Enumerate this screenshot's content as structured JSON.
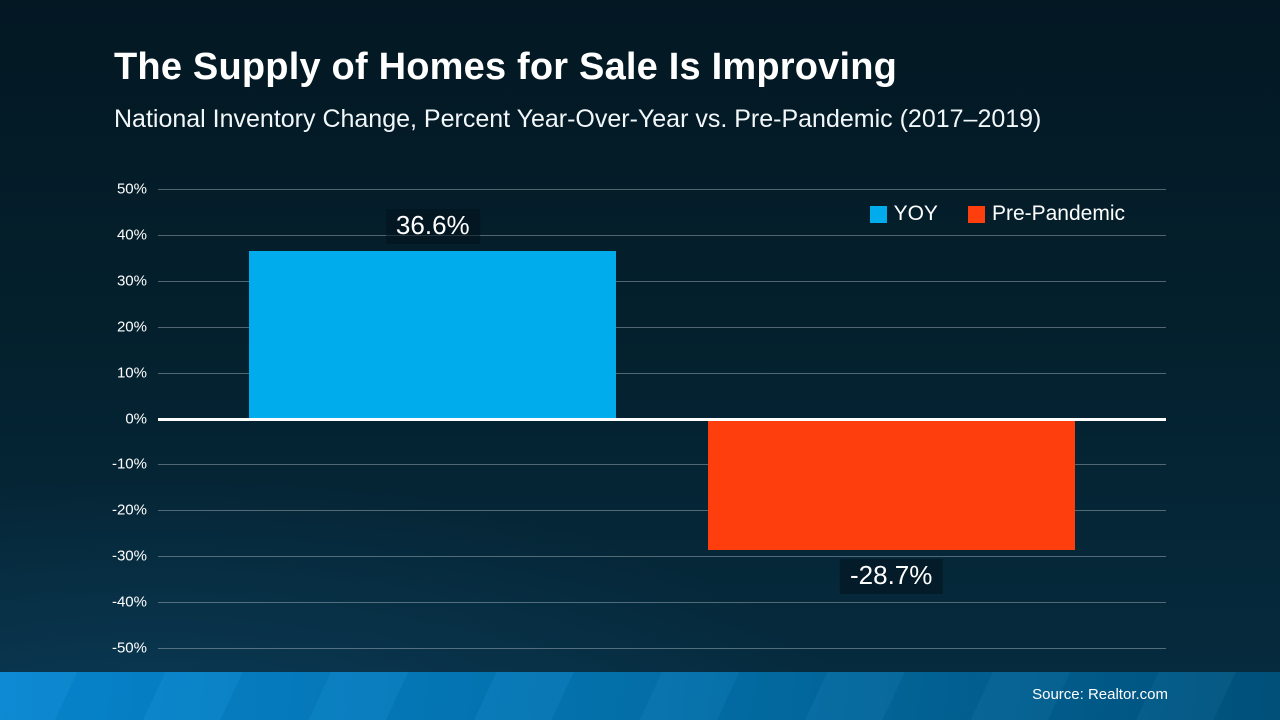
{
  "slide": {
    "title": "The Supply of Homes for Sale Is Improving",
    "subtitle": "National Inventory Change, Percent Year-Over-Year vs. Pre-Pandemic (2017–2019)",
    "source": "Source: Realtor.com"
  },
  "colors": {
    "background_top": "#031823",
    "background_bottom": "#062c40",
    "yoy_blue": "#00ACEC",
    "pre_pandemic_orange": "#FF3E0D",
    "zero_line": "#FFFFFF",
    "gridline": "rgba(188,201,208,0.42)",
    "footer_blue_left": "#0787D2",
    "footer_blue_right": "#00537D",
    "text": "#FFFFFF"
  },
  "chart_data": {
    "type": "bar",
    "categories": [
      "YOY",
      "Pre-Pandemic"
    ],
    "series": [
      {
        "name": "YOY",
        "value": 36.6,
        "label": "36.6%",
        "color": "#00ACEC"
      },
      {
        "name": "Pre-Pandemic",
        "value": -28.7,
        "label": "-28.7%",
        "color": "#FF3E0D"
      }
    ],
    "title": "The Supply of Homes for Sale Is Improving",
    "subtitle": "National Inventory Change, Percent Year-Over-Year vs. Pre-Pandemic (2017–2019)",
    "xlabel": "",
    "ylabel": "",
    "ylim": [
      -50,
      50
    ],
    "yticks": [
      50,
      40,
      30,
      20,
      10,
      0,
      -10,
      -20,
      -30,
      -40,
      -50
    ],
    "ytick_labels": [
      "50%",
      "40%",
      "30%",
      "20%",
      "10%",
      "0%",
      "-10%",
      "-20%",
      "-30%",
      "-40%",
      "-50%"
    ],
    "grid": true,
    "legend_position": "top-right",
    "legend": [
      "YOY",
      "Pre-Pandemic"
    ]
  }
}
